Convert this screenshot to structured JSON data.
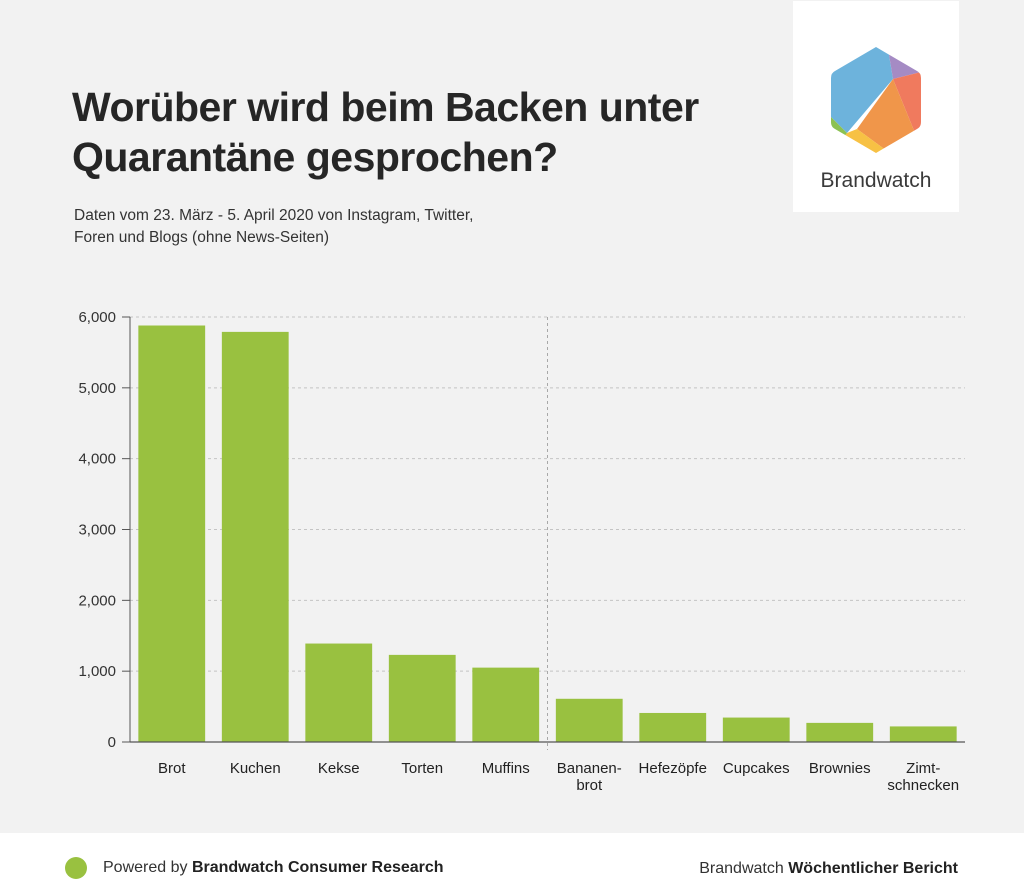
{
  "header": {
    "title_line1": "Worüber wird beim Backen unter",
    "title_line2": "Quarantäne gesprochen?",
    "subtitle_line1": "Daten vom 23. März - 5. April 2020 von Instagram, Twitter,",
    "subtitle_line2": "Foren und Blogs (ohne News-Seiten)"
  },
  "logo": {
    "text": "Brandwatch",
    "colors": [
      "#6db3dc",
      "#a58bc4",
      "#f07a5e",
      "#f0964a",
      "#f7c144",
      "#8cc152"
    ]
  },
  "footer": {
    "left_prefix": "Powered by ",
    "left_bold": "Brandwatch Consumer Research",
    "right_prefix": "Brandwatch ",
    "right_bold": "Wöchentlicher Bericht",
    "dot_color": "#99c140"
  },
  "chart_data": {
    "type": "bar",
    "categories": [
      "Brot",
      "Kuchen",
      "Kekse",
      "Torten",
      "Muffins",
      "Bananen-\nbrot",
      "Hefezöpfe",
      "Cupcakes",
      "Brownies",
      "Zimt-\nschnecken"
    ],
    "values": [
      5880,
      5790,
      1390,
      1230,
      1050,
      610,
      410,
      345,
      270,
      220
    ],
    "ylim": [
      0,
      6000
    ],
    "yticks": [
      0,
      1000,
      2000,
      3000,
      4000,
      5000,
      6000
    ],
    "ytick_labels": [
      "0",
      "1,000",
      "2,000",
      "3,000",
      "4,000",
      "5,000",
      "6,000"
    ],
    "bar_color": "#99c140",
    "grid": true,
    "grid_style": "dotted",
    "divider_after_index": 4
  }
}
